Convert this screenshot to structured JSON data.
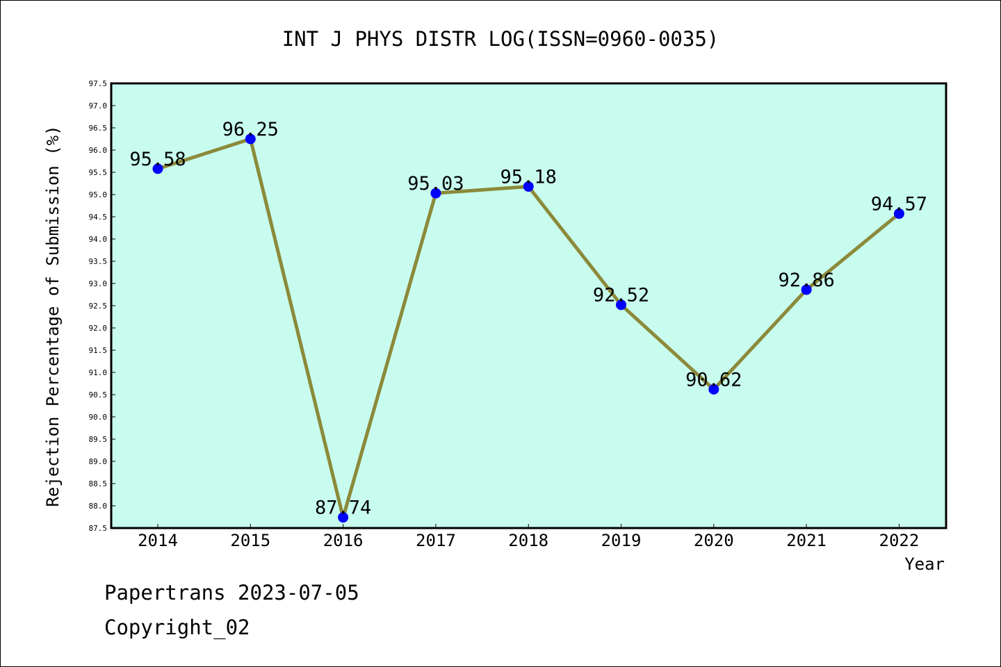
{
  "chart_data": {
    "type": "line",
    "title": "INT J PHYS DISTR LOG(ISSN=0960-0035)",
    "xlabel": "Year",
    "ylabel": "Rejection Percentage of Submission (%)",
    "categories": [
      "2014",
      "2015",
      "2016",
      "2017",
      "2018",
      "2019",
      "2020",
      "2021",
      "2022"
    ],
    "values": [
      95.58,
      96.25,
      87.74,
      95.03,
      95.18,
      92.52,
      90.62,
      92.86,
      94.57
    ],
    "value_labels": [
      "95.58",
      "96.25",
      "87.74",
      "95.03",
      "95.18",
      "92.52",
      "90.62",
      "92.86",
      "94.57"
    ],
    "ylim": [
      87.5,
      97.5
    ],
    "ytick_step": 0.5,
    "grid": false,
    "colors": {
      "plot_background": "#c8fcee",
      "line": "#8b8a3a",
      "marker": "#0000ff"
    }
  },
  "footer": {
    "line1": "Papertrans 2023-07-05",
    "line2": "Copyright_02"
  }
}
